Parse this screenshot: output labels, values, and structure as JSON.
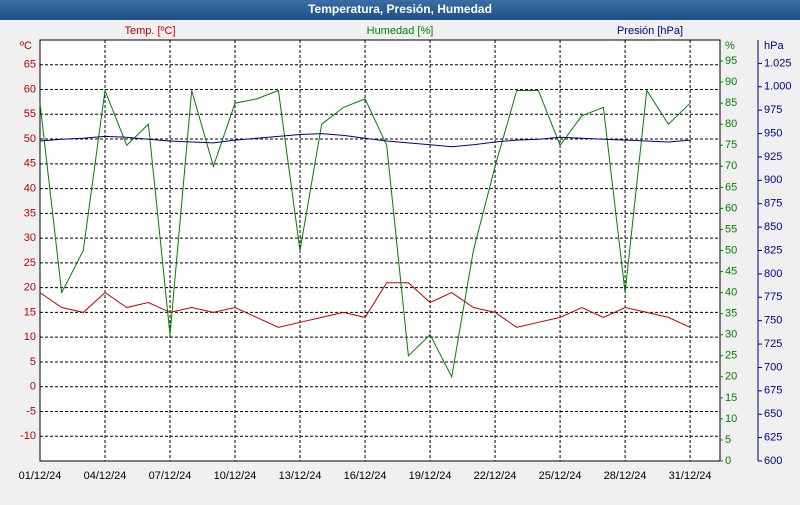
{
  "chart_data": {
    "type": "line",
    "title": "Temperatura, Presión, Humedad",
    "x": [
      "01/12/24",
      "02/12/24",
      "03/12/24",
      "04/12/24",
      "05/12/24",
      "06/12/24",
      "07/12/24",
      "08/12/24",
      "09/12/24",
      "10/12/24",
      "11/12/24",
      "12/12/24",
      "13/12/24",
      "14/12/24",
      "15/12/24",
      "16/12/24",
      "17/12/24",
      "18/12/24",
      "19/12/24",
      "20/12/24",
      "21/12/24",
      "22/12/24",
      "23/12/24",
      "24/12/24",
      "25/12/24",
      "26/12/24",
      "27/12/24",
      "28/12/24",
      "29/12/24",
      "30/12/24",
      "31/12/24"
    ],
    "xticks": [
      "01/12/24",
      "04/12/24",
      "07/12/24",
      "10/12/24",
      "13/12/24",
      "16/12/24",
      "19/12/24",
      "22/12/24",
      "25/12/24",
      "28/12/24",
      "31/12/24"
    ],
    "ylabel": "ºC",
    "y2label": "%",
    "y3label": "hPa",
    "ylim": [
      -15,
      70
    ],
    "yticks": [
      -10,
      -5,
      0,
      5,
      10,
      15,
      20,
      25,
      30,
      35,
      40,
      45,
      50,
      55,
      60,
      65
    ],
    "y2lim": [
      0,
      100
    ],
    "y2ticks": [
      0,
      5,
      10,
      15,
      20,
      25,
      30,
      35,
      40,
      45,
      50,
      55,
      60,
      65,
      70,
      75,
      80,
      85,
      90,
      95
    ],
    "y3lim": [
      600,
      1050
    ],
    "y3ticks": [
      600,
      625,
      650,
      675,
      700,
      725,
      750,
      775,
      800,
      825,
      850,
      875,
      900,
      925,
      950,
      975,
      {
        "value": 1000,
        "label": "1.000"
      },
      {
        "value": 1025,
        "label": "1.025"
      }
    ],
    "grid": true,
    "series": [
      {
        "name": "Temp. [ºC]",
        "color": "#c00000",
        "axis": "y",
        "values": [
          19,
          16,
          15,
          19,
          16,
          17,
          15,
          16,
          15,
          16,
          14,
          12,
          13,
          14,
          15,
          14,
          21,
          21,
          17,
          19,
          16,
          15,
          12,
          13,
          14,
          16,
          14,
          16,
          15,
          14,
          12
        ]
      },
      {
        "name": "Humedad [%]",
        "color": "#008000",
        "axis": "y2",
        "values": [
          85,
          40,
          50,
          88,
          75,
          80,
          30,
          88,
          70,
          85,
          86,
          88,
          50,
          80,
          84,
          86,
          75,
          25,
          30,
          20,
          50,
          70,
          88,
          88,
          75,
          82,
          84,
          40,
          88,
          80,
          85
        ]
      },
      {
        "name": "Presión [hPa]",
        "color": "#000080",
        "axis": "y3",
        "values": [
          942,
          944,
          945,
          947,
          946,
          944,
          942,
          941,
          940,
          943,
          945,
          947,
          949,
          950,
          948,
          945,
          942,
          940,
          938,
          936,
          938,
          941,
          943,
          944,
          946,
          945,
          944,
          943,
          942,
          941,
          943
        ]
      }
    ]
  }
}
